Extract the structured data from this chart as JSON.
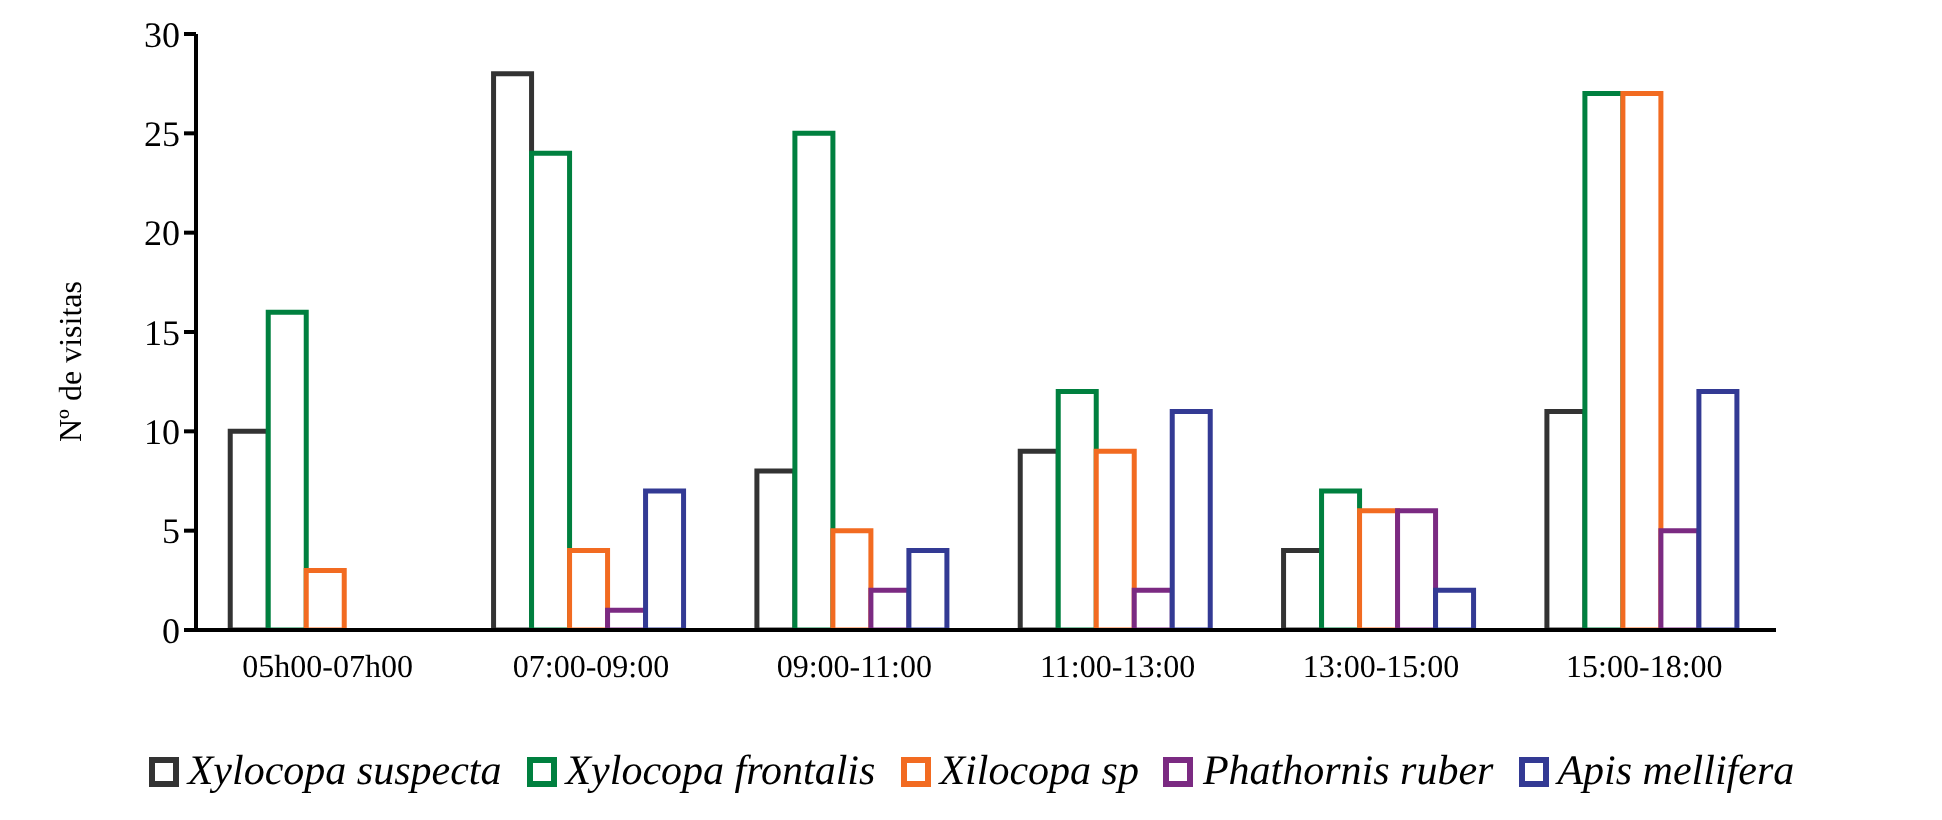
{
  "chart_data": {
    "type": "bar",
    "ylabel": "Nº de visitas",
    "categories": [
      "05h00-07h00",
      "07:00-09:00",
      "09:00-11:00",
      "11:00-13:00",
      "13:00-15:00",
      "15:00-18:00"
    ],
    "series": [
      {
        "name": "Xylocopa suspecta",
        "color": "#333333",
        "values": [
          10,
          28,
          8,
          9,
          4,
          11
        ]
      },
      {
        "name": "Xylocopa frontalis",
        "color": "#00803f",
        "values": [
          16,
          24,
          25,
          12,
          7,
          27
        ]
      },
      {
        "name": "Xilocopa sp",
        "color": "#f26b21",
        "values": [
          3,
          4,
          5,
          9,
          6,
          27
        ]
      },
      {
        "name": "Phathornis ruber",
        "color": "#7b2a82",
        "values": [
          0,
          1,
          2,
          2,
          6,
          5
        ]
      },
      {
        "name": "Apis mellifera",
        "color": "#333a94",
        "values": [
          0,
          7,
          4,
          11,
          2,
          12
        ]
      }
    ],
    "ylim": [
      0,
      30
    ],
    "yticks": [
      0,
      5,
      10,
      15,
      20,
      25,
      30
    ],
    "grid": false,
    "legend": "bottom"
  }
}
